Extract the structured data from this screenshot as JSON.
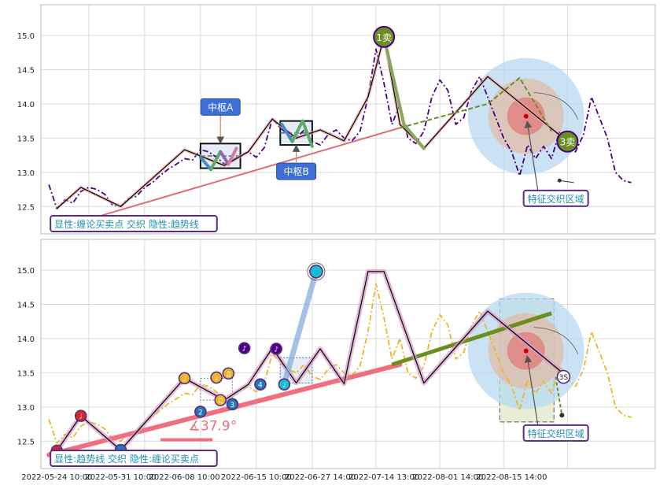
{
  "chart_data": [
    {
      "type": "line",
      "panel": "top",
      "ylim": [
        12.1,
        15.45
      ],
      "y_ticks": [
        "15.0",
        "14.5",
        "14.0",
        "13.5",
        "13.0",
        "12.5"
      ],
      "y_tick_values": [
        15.0,
        14.5,
        14.0,
        13.5,
        13.0,
        12.5
      ],
      "grid": true,
      "series": [
        {
          "role": "price",
          "color": "#4b0082",
          "style": "dash-dot",
          "x": [
            0,
            1,
            2,
            3,
            4,
            5,
            6,
            7,
            8,
            9,
            10,
            11,
            12,
            13,
            14,
            15,
            16,
            17,
            18,
            19,
            20,
            21,
            22,
            23,
            24,
            25,
            26,
            27,
            28,
            29,
            30,
            31,
            32,
            33,
            34,
            35,
            36,
            37,
            38,
            39,
            40,
            41,
            42,
            43,
            44,
            45,
            46,
            47,
            48,
            49,
            50,
            51,
            52,
            53,
            54,
            55,
            56,
            57,
            58,
            59,
            60,
            61,
            62,
            63,
            64,
            65,
            66,
            67,
            68,
            69,
            70,
            71,
            72,
            73
          ],
          "values": [
            12.82,
            12.47,
            12.6,
            12.55,
            12.72,
            12.78,
            12.75,
            12.68,
            12.52,
            12.5,
            12.62,
            12.65,
            12.78,
            12.85,
            12.96,
            13.05,
            13.12,
            13.2,
            13.18,
            13.33,
            13.3,
            13.22,
            13.12,
            13.18,
            13.25,
            13.3,
            13.22,
            13.36,
            13.78,
            13.65,
            13.55,
            13.5,
            13.62,
            13.45,
            13.4,
            13.55,
            13.62,
            13.5,
            13.46,
            13.6,
            14.1,
            14.8,
            14.3,
            13.7,
            14.0,
            13.5,
            13.42,
            13.6,
            14.1,
            14.35,
            14.2,
            13.7,
            13.8,
            14.2,
            14.4,
            14.1,
            13.8,
            13.5,
            13.3,
            12.95,
            13.4,
            13.2,
            13.38,
            13.2,
            13.6,
            13.4,
            13.3,
            13.55,
            14.1,
            13.8,
            13.5,
            13.0,
            12.88,
            12.85
          ]
        },
        {
          "role": "trend",
          "color": "#e06c75",
          "x": [
            4,
            44
          ],
          "values": [
            12.28,
            13.65
          ]
        },
        {
          "role": "zigzag",
          "color": "#000000",
          "x": [
            1,
            4,
            9,
            17,
            22,
            25,
            28,
            31,
            34,
            37,
            40,
            42,
            44,
            47,
            55,
            65
          ],
          "values": [
            12.47,
            12.78,
            12.5,
            13.33,
            13.1,
            13.3,
            13.78,
            13.5,
            13.62,
            13.46,
            14.1,
            14.98,
            13.7,
            13.35,
            14.4,
            13.45
          ]
        },
        {
          "role": "signal-path",
          "color": "#6b8e23",
          "style": "dashed",
          "x": [
            44,
            55,
            59,
            63
          ],
          "values": [
            13.65,
            14.0,
            14.38,
            13.6
          ]
        }
      ],
      "zones": [
        {
          "label": "中枢A",
          "x": [
            19,
            24
          ],
          "y": [
            13.06,
            13.42
          ]
        },
        {
          "label": "中枢B",
          "x": [
            29,
            33
          ],
          "y": [
            13.4,
            13.75
          ]
        }
      ],
      "markers": [
        {
          "label": "1卖",
          "x": 42,
          "y": 14.98,
          "color": "#6b8e23"
        },
        {
          "label": "3卖",
          "x": 65,
          "y": 13.45,
          "color": "#6b8e23"
        }
      ],
      "annotations": [
        {
          "text": "特征交织区域",
          "x": 59.5,
          "y": 12.55
        },
        {
          "text": "显性:缠论买卖点 交织 隐性:趋势线",
          "x": 0.2,
          "y": 12.18
        }
      ]
    },
    {
      "type": "line",
      "panel": "bottom",
      "ylim": [
        12.1,
        15.45
      ],
      "y_ticks": [
        "15.0",
        "14.5",
        "14.0",
        "13.5",
        "13.0",
        "12.5"
      ],
      "y_tick_values": [
        15.0,
        14.5,
        14.0,
        13.5,
        13.0,
        12.5
      ],
      "grid": true,
      "x_tick_labels": [
        "2022-05-24 10:00",
        "2022-05-31 10:00",
        "2022-06-08 10:00",
        "2022-06-15 10:00",
        "2022-06-27 14:00",
        "2022-07-14 13:00",
        "2022-08-01 14:00",
        "2022-08-15 14:00"
      ],
      "series": [
        {
          "role": "price",
          "color": "#f0b429",
          "style": "dash-dot",
          "x": [
            0,
            1,
            2,
            3,
            4,
            5,
            6,
            7,
            8,
            9,
            10,
            11,
            12,
            13,
            14,
            15,
            16,
            17,
            18,
            19,
            20,
            21,
            22,
            23,
            24,
            25,
            26,
            27,
            28,
            29,
            30,
            31,
            32,
            33,
            34,
            35,
            36,
            37,
            38,
            39,
            40,
            41,
            42,
            43,
            44,
            45,
            46,
            47,
            48,
            49,
            50,
            51,
            52,
            53,
            54,
            55,
            56,
            57,
            58,
            59,
            60,
            61,
            62,
            63,
            64,
            65,
            66,
            67,
            68,
            69,
            70,
            71,
            72,
            73
          ],
          "values": [
            12.82,
            12.47,
            12.6,
            12.55,
            12.72,
            12.78,
            12.75,
            12.68,
            12.52,
            12.5,
            12.62,
            12.65,
            12.78,
            12.85,
            12.96,
            13.05,
            13.12,
            13.2,
            13.18,
            13.33,
            13.3,
            13.22,
            13.12,
            13.18,
            13.25,
            13.3,
            13.22,
            13.36,
            13.78,
            13.65,
            13.55,
            13.5,
            13.62,
            13.45,
            13.4,
            13.55,
            13.62,
            13.5,
            13.46,
            13.6,
            14.1,
            14.8,
            14.3,
            13.7,
            14.0,
            13.5,
            13.42,
            13.6,
            14.1,
            14.35,
            14.2,
            13.7,
            13.8,
            14.2,
            14.4,
            14.1,
            13.8,
            13.5,
            13.3,
            12.95,
            13.4,
            13.2,
            13.38,
            13.2,
            13.6,
            13.4,
            13.3,
            13.55,
            14.1,
            13.8,
            13.5,
            13.0,
            12.88,
            12.85
          ]
        },
        {
          "role": "trend-up",
          "color": "#ef6f7e",
          "x": [
            0,
            44
          ],
          "values": [
            12.3,
            13.62
          ]
        },
        {
          "role": "trend-strong",
          "color": "#6b8e23",
          "x": [
            43,
            63
          ],
          "values": [
            13.62,
            14.37
          ]
        },
        {
          "role": "zigzag",
          "color": "#000000",
          "x": [
            1,
            4,
            9,
            17,
            22,
            25,
            28,
            31,
            34,
            37,
            40,
            42,
            47,
            55,
            65
          ],
          "values": [
            12.36,
            12.87,
            12.37,
            13.42,
            13.1,
            13.33,
            13.86,
            13.35,
            13.85,
            13.34,
            14.98,
            14.98,
            13.35,
            14.4,
            13.44
          ]
        }
      ],
      "markers": [
        {
          "label": "",
          "x": 1,
          "y": 12.36,
          "color": "#d62728"
        },
        {
          "label": "♩",
          "x": 4,
          "y": 12.87,
          "color": "#d62728"
        },
        {
          "label": "",
          "x": 9,
          "y": 12.37,
          "color": "#1f77b4"
        },
        {
          "label": "♩",
          "x": 17,
          "y": 13.42,
          "color": "#f0b429"
        },
        {
          "label": "2",
          "x": 19,
          "y": 12.93,
          "color": "#1f77b4"
        },
        {
          "label": "♩",
          "x": 21,
          "y": 13.43,
          "color": "#f0b429"
        },
        {
          "label": "♫",
          "x": 21.5,
          "y": 13.1,
          "color": "#f0b429"
        },
        {
          "label": "♫",
          "x": 22.5,
          "y": 13.49,
          "color": "#f0b429"
        },
        {
          "label": "3",
          "x": 23,
          "y": 13.04,
          "color": "#1f77b4"
        },
        {
          "label": "♪",
          "x": 24.5,
          "y": 13.86,
          "color": "#4b0082"
        },
        {
          "label": "4",
          "x": 26.5,
          "y": 13.33,
          "color": "#1f77b4"
        },
        {
          "label": "♪",
          "x": 28.5,
          "y": 13.85,
          "color": "#4b0082"
        },
        {
          "label": "♩",
          "x": 29.5,
          "y": 13.33,
          "color": "#17becf"
        },
        {
          "label": "",
          "x": 33.5,
          "y": 14.98,
          "color": "#17becf"
        },
        {
          "label": "3S",
          "x": 64.5,
          "y": 13.44,
          "color": "#ffffff"
        }
      ],
      "annotations": [
        {
          "text": "∡37.9°",
          "x": 17.5,
          "y": 12.66
        },
        {
          "text": "特征交织区域",
          "x": 59.5,
          "y": 12.55
        },
        {
          "text": "显性:趋势线 交织 隐性:缠论买卖点",
          "x": 0.2,
          "y": 12.18
        }
      ]
    }
  ]
}
